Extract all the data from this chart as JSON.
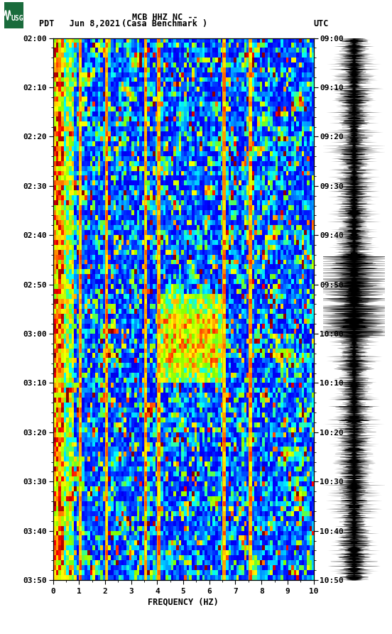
{
  "title_line1": "MCB HHZ NC --",
  "title_line2": "(Casa Benchmark )",
  "left_label": "PDT   Jun 8,2021",
  "right_label": "UTC",
  "y_left_ticks": [
    "02:00",
    "02:10",
    "02:20",
    "02:30",
    "02:40",
    "02:50",
    "03:00",
    "03:10",
    "03:20",
    "03:30",
    "03:40",
    "03:50"
  ],
  "y_right_ticks": [
    "09:00",
    "09:10",
    "09:20",
    "09:30",
    "09:40",
    "09:50",
    "10:00",
    "10:10",
    "10:20",
    "10:30",
    "10:40",
    "10:50"
  ],
  "xlabel": "FREQUENCY (HZ)",
  "x_ticks": [
    0,
    1,
    2,
    3,
    4,
    5,
    6,
    7,
    8,
    9,
    10
  ],
  "freq_lines": [
    1.0,
    2.0,
    3.5,
    4.0,
    6.5,
    7.5
  ],
  "fig_width": 5.52,
  "fig_height": 8.93,
  "n_time": 110,
  "n_freq": 100,
  "bg_color": "white"
}
